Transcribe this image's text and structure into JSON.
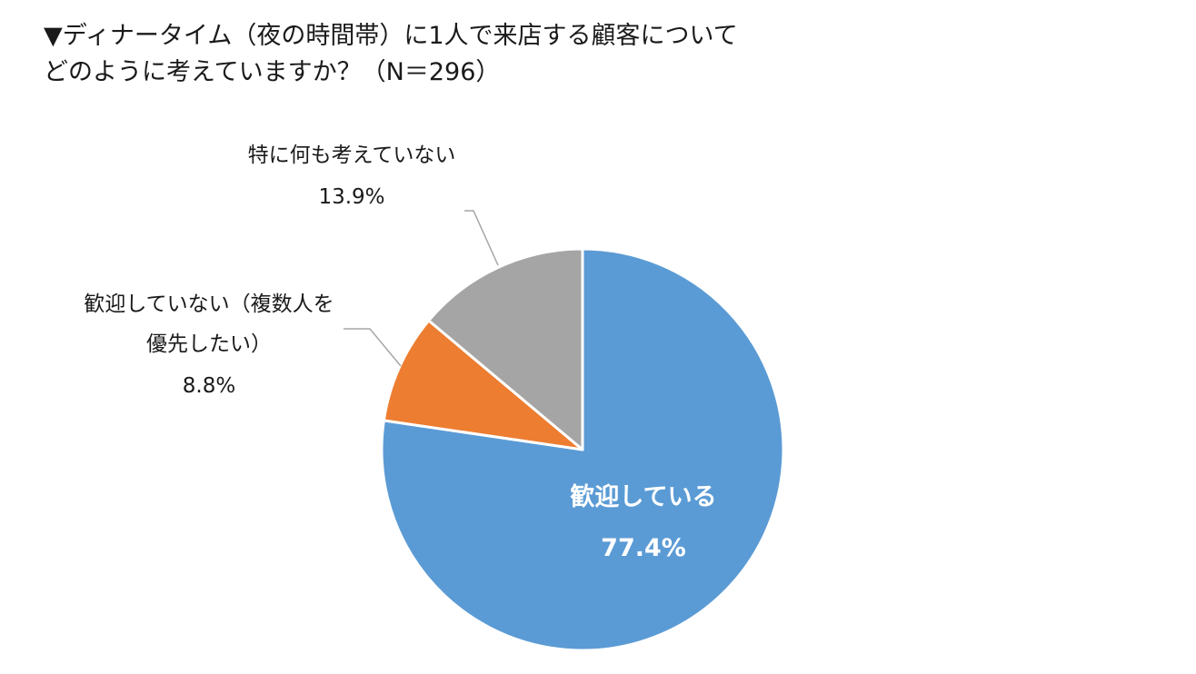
{
  "title": {
    "line1": "▼ディナータイム（夜の時間帯）に1人で来店する顧客について",
    "line2": "どのように考えていますか？（N＝296）"
  },
  "chart_data": {
    "type": "pie",
    "start_angle_deg": 0,
    "direction": "clockwise",
    "slices": [
      {
        "label_lines": [
          "歓迎している"
        ],
        "value": 77.4,
        "value_label": "77.4%",
        "color": "#5B9BD5",
        "label_color": "#ffffff",
        "label_placement": "inside"
      },
      {
        "label_lines": [
          "歓迎していない（複数人を",
          "優先したい）"
        ],
        "value": 8.8,
        "value_label": "8.8%",
        "color": "#ED7D31",
        "label_color": "#1a1a1a",
        "label_placement": "outside"
      },
      {
        "label_lines": [
          "特に何も考えていない"
        ],
        "value": 13.9,
        "value_label": "13.9%",
        "color": "#A5A5A5",
        "label_color": "#1a1a1a",
        "label_placement": "outside"
      }
    ]
  }
}
